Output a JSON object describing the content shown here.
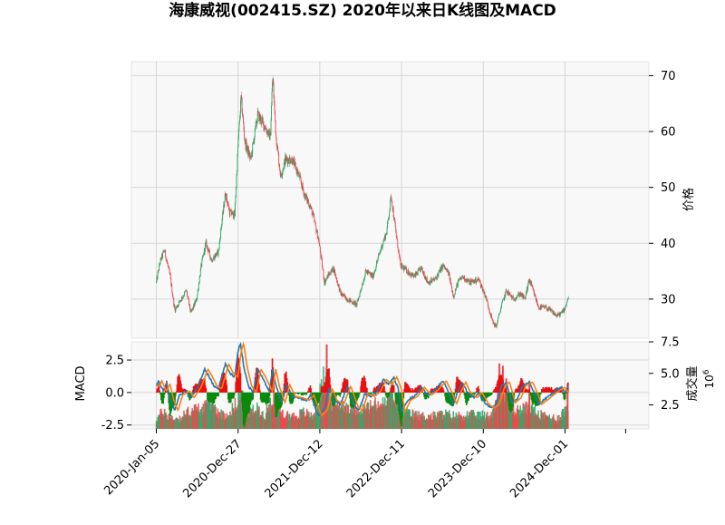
{
  "chart_data": {
    "type": "candlestick+macd+volume",
    "title": "海康威视(002415.SZ) 2020年以来日K线图及MACD",
    "x_tick_labels": [
      "2020-Jan-05",
      "2020-Dec-27",
      "2021-Dec-12",
      "2022-Dec-11",
      "2023-Dec-10",
      "2024-Dec-01"
    ],
    "x_tick_index": [
      0,
      355,
      710,
      1065,
      1420,
      1775
    ],
    "total_bars": 2050,
    "price": {
      "ylabel": "价格",
      "ylim": [
        23,
        72.5
      ],
      "ticks": [
        30,
        40,
        50,
        60,
        70
      ],
      "grid": true,
      "keypoints": [
        [
          0,
          33
        ],
        [
          15,
          36.5
        ],
        [
          35,
          38.8
        ],
        [
          60,
          34
        ],
        [
          80,
          28
        ],
        [
          100,
          29.5
        ],
        [
          130,
          31.5
        ],
        [
          150,
          27.5
        ],
        [
          175,
          30
        ],
        [
          195,
          36
        ],
        [
          215,
          40
        ],
        [
          240,
          37
        ],
        [
          270,
          38.5
        ],
        [
          285,
          44
        ],
        [
          300,
          49
        ],
        [
          318,
          45.5
        ],
        [
          340,
          45
        ],
        [
          355,
          58
        ],
        [
          368,
          66
        ],
        [
          385,
          58
        ],
        [
          410,
          55
        ],
        [
          440,
          63
        ],
        [
          470,
          61
        ],
        [
          495,
          59
        ],
        [
          505,
          70
        ],
        [
          520,
          59
        ],
        [
          540,
          52
        ],
        [
          560,
          55
        ],
        [
          590,
          55
        ],
        [
          620,
          52
        ],
        [
          645,
          48.5
        ],
        [
          665,
          47
        ],
        [
          680,
          45
        ],
        [
          705,
          40.5
        ],
        [
          730,
          33
        ],
        [
          750,
          34.5
        ],
        [
          770,
          35.5
        ],
        [
          800,
          31
        ],
        [
          830,
          30
        ],
        [
          870,
          29
        ],
        [
          910,
          35
        ],
        [
          940,
          34
        ],
        [
          975,
          39
        ],
        [
          1000,
          42
        ],
        [
          1020,
          48.5
        ],
        [
          1040,
          42
        ],
        [
          1060,
          36
        ],
        [
          1090,
          35
        ],
        [
          1120,
          34
        ],
        [
          1150,
          35.5
        ],
        [
          1180,
          33
        ],
        [
          1210,
          33.5
        ],
        [
          1245,
          36
        ],
        [
          1270,
          34.5
        ],
        [
          1290,
          30.5
        ],
        [
          1310,
          33
        ],
        [
          1330,
          34
        ],
        [
          1360,
          33
        ],
        [
          1400,
          33.5
        ],
        [
          1430,
          30.5
        ],
        [
          1460,
          26
        ],
        [
          1475,
          25
        ],
        [
          1500,
          29
        ],
        [
          1520,
          31.5
        ],
        [
          1550,
          30
        ],
        [
          1580,
          31
        ],
        [
          1600,
          30
        ],
        [
          1620,
          33.5
        ],
        [
          1640,
          31
        ],
        [
          1660,
          28.5
        ],
        [
          1690,
          28.5
        ],
        [
          1710,
          28
        ],
        [
          1740,
          27
        ],
        [
          1760,
          27.5
        ],
        [
          1775,
          28.5
        ],
        [
          1790,
          30.5
        ]
      ]
    },
    "indicator": {
      "ylabel": "MACD",
      "ylim": [
        -2.8,
        3.9
      ],
      "ticks": [
        -2.5,
        0.0,
        2.5
      ],
      "macd_keypoints": [
        [
          0,
          0.5
        ],
        [
          10,
          0.9
        ],
        [
          30,
          0.1
        ],
        [
          45,
          0.7
        ],
        [
          60,
          -0.5
        ],
        [
          80,
          -1.4
        ],
        [
          100,
          -0.2
        ],
        [
          130,
          0.1
        ],
        [
          150,
          -0.4
        ],
        [
          180,
          0.4
        ],
        [
          195,
          1.1
        ],
        [
          210,
          1.8
        ],
        [
          230,
          1.2
        ],
        [
          250,
          0.5
        ],
        [
          270,
          0.3
        ],
        [
          300,
          2.2
        ],
        [
          320,
          1.5
        ],
        [
          340,
          1.2
        ],
        [
          355,
          3.2
        ],
        [
          365,
          3.8
        ],
        [
          380,
          2.0
        ],
        [
          400,
          0.5
        ],
        [
          420,
          0.0
        ],
        [
          440,
          1.8
        ],
        [
          460,
          1.2
        ],
        [
          490,
          0.1
        ],
        [
          505,
          1.8
        ],
        [
          520,
          0.5
        ],
        [
          545,
          -0.8
        ],
        [
          565,
          0.6
        ],
        [
          590,
          -0.3
        ],
        [
          620,
          -0.4
        ],
        [
          650,
          -0.6
        ],
        [
          670,
          -0.2
        ],
        [
          690,
          -1.2
        ],
        [
          705,
          -1.8
        ],
        [
          730,
          -1.3
        ],
        [
          750,
          0.3
        ],
        [
          770,
          -0.6
        ],
        [
          800,
          -0.9
        ],
        [
          830,
          0.5
        ],
        [
          860,
          -1.0
        ],
        [
          880,
          -1.4
        ],
        [
          905,
          -0.1
        ],
        [
          935,
          -0.3
        ],
        [
          960,
          0.1
        ],
        [
          985,
          1.0
        ],
        [
          1010,
          0.6
        ],
        [
          1030,
          1.2
        ],
        [
          1050,
          0.3
        ],
        [
          1065,
          -1.5
        ],
        [
          1090,
          -0.6
        ],
        [
          1120,
          -0.3
        ],
        [
          1150,
          0.4
        ],
        [
          1180,
          -0.2
        ],
        [
          1210,
          0.2
        ],
        [
          1245,
          0.9
        ],
        [
          1270,
          0.0
        ],
        [
          1290,
          -0.9
        ],
        [
          1310,
          0.1
        ],
        [
          1330,
          0.8
        ],
        [
          1350,
          0.0
        ],
        [
          1380,
          -0.4
        ],
        [
          1400,
          0.0
        ],
        [
          1430,
          -0.9
        ],
        [
          1455,
          -1.2
        ],
        [
          1475,
          -0.9
        ],
        [
          1500,
          0.5
        ],
        [
          1520,
          0.8
        ],
        [
          1545,
          -0.8
        ],
        [
          1570,
          -0.4
        ],
        [
          1590,
          0.5
        ],
        [
          1620,
          0.8
        ],
        [
          1640,
          0.0
        ],
        [
          1660,
          -0.9
        ],
        [
          1690,
          -0.5
        ],
        [
          1710,
          -0.2
        ],
        [
          1740,
          0.2
        ],
        [
          1760,
          0.4
        ],
        [
          1775,
          0.0
        ],
        [
          1790,
          0.6
        ]
      ],
      "signal_lag": 14,
      "hist_threshold": 0.6
    },
    "volume": {
      "ylabel": "成交量",
      "multiplier_label": "10^6",
      "ylim": [
        0.6,
        7.5
      ],
      "ticks": [
        2.5,
        5.0,
        7.5
      ],
      "keypoints": [
        [
          0,
          1.4
        ],
        [
          30,
          2.0
        ],
        [
          60,
          1.5
        ],
        [
          100,
          1.4
        ],
        [
          150,
          2.1
        ],
        [
          200,
          2.2
        ],
        [
          230,
          3.0
        ],
        [
          270,
          1.9
        ],
        [
          300,
          1.6
        ],
        [
          340,
          2.4
        ],
        [
          368,
          3.4
        ],
        [
          400,
          1.9
        ],
        [
          440,
          2.2
        ],
        [
          470,
          1.6
        ],
        [
          505,
          3.2
        ],
        [
          540,
          1.8
        ],
        [
          600,
          1.6
        ],
        [
          640,
          1.9
        ],
        [
          680,
          1.6
        ],
        [
          705,
          3.0
        ],
        [
          740,
          5.5
        ],
        [
          760,
          2.5
        ],
        [
          800,
          2.6
        ],
        [
          850,
          2.3
        ],
        [
          900,
          2.2
        ],
        [
          950,
          2.5
        ],
        [
          1000,
          2.6
        ],
        [
          1020,
          3.9
        ],
        [
          1050,
          2.2
        ],
        [
          1100,
          1.8
        ],
        [
          1150,
          1.6
        ],
        [
          1200,
          1.6
        ],
        [
          1250,
          1.8
        ],
        [
          1300,
          1.6
        ],
        [
          1350,
          1.7
        ],
        [
          1400,
          1.7
        ],
        [
          1450,
          1.6
        ],
        [
          1480,
          3.0
        ],
        [
          1500,
          3.5
        ],
        [
          1530,
          2.6
        ],
        [
          1560,
          2.0
        ],
        [
          1600,
          2.2
        ],
        [
          1620,
          2.4
        ],
        [
          1660,
          1.7
        ],
        [
          1700,
          1.6
        ],
        [
          1740,
          1.4
        ],
        [
          1775,
          2.1
        ],
        [
          1790,
          2.4
        ]
      ],
      "spikes": [
        [
          740,
          7.3
        ],
        [
          1490,
          5.8
        ],
        [
          1505,
          5.6
        ],
        [
          1520,
          4.6
        ],
        [
          1620,
          4.4
        ],
        [
          1786,
          4.2
        ]
      ]
    },
    "colors": {
      "up": "#2ca868",
      "down": "#e8484a",
      "macd_line": "#1f77b4",
      "signal_line": "#ff7f0e",
      "hist_pos": "#e81010",
      "hist_neg": "#0a8a0a",
      "panel_bg": "#f8f8f8",
      "grid": "#d6d6d6"
    }
  }
}
